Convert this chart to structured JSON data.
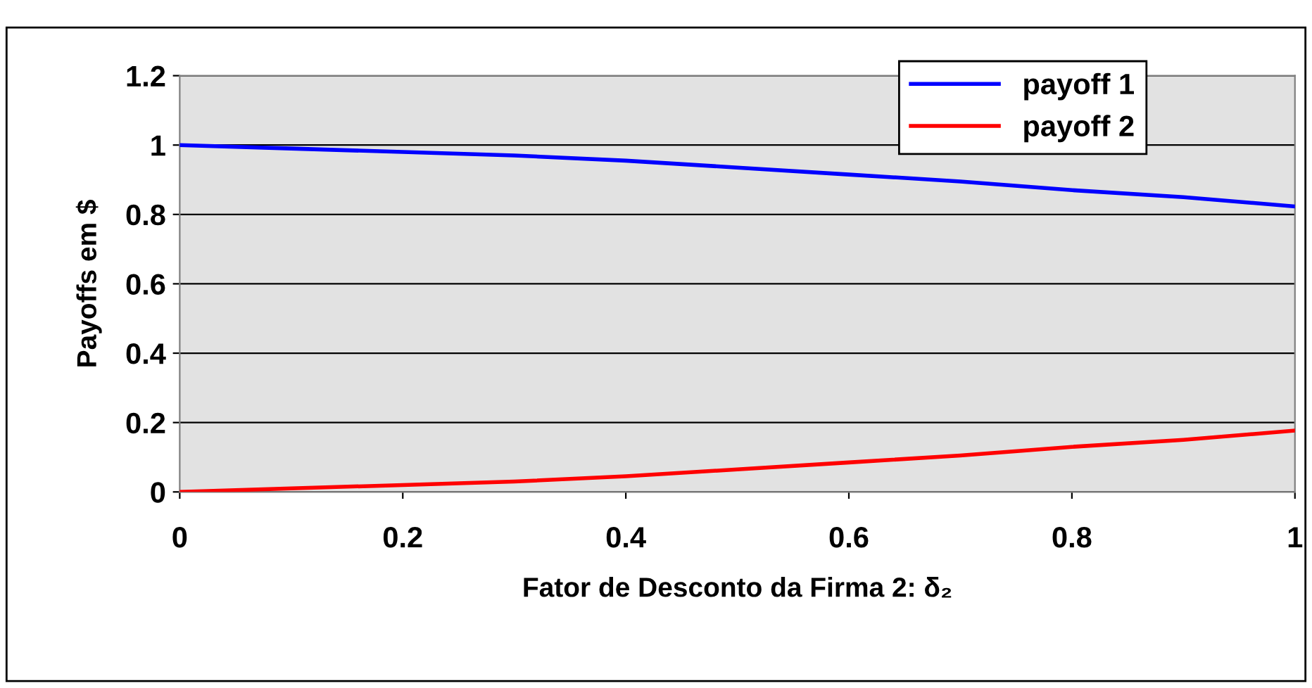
{
  "chart_data": {
    "type": "line",
    "xlabel": "Fator de Desconto da Firma 2: δ₂",
    "ylabel": "Payoffs em $",
    "x": [
      0,
      0.1,
      0.2,
      0.3,
      0.4,
      0.5,
      0.6,
      0.7,
      0.8,
      0.9,
      1
    ],
    "series": [
      {
        "name": "payoff 1",
        "color": "#0000ff",
        "values": [
          1,
          0.99,
          0.98,
          0.97,
          0.955,
          0.935,
          0.915,
          0.895,
          0.87,
          0.85,
          0.823
        ]
      },
      {
        "name": "payoff 2",
        "color": "#ff0000",
        "values": [
          0,
          0.01,
          0.02,
          0.03,
          0.045,
          0.065,
          0.085,
          0.105,
          0.13,
          0.15,
          0.177
        ]
      }
    ],
    "xlim": [
      0,
      1
    ],
    "ylim": [
      0,
      1.2
    ],
    "xticks": [
      0,
      0.2,
      0.4,
      0.6,
      0.8,
      1
    ],
    "yticks": [
      0,
      0.2,
      0.4,
      0.6,
      0.8,
      1,
      1.2
    ],
    "grid": "y",
    "legend": "top right",
    "marker": "none",
    "line_style": "solid"
  }
}
